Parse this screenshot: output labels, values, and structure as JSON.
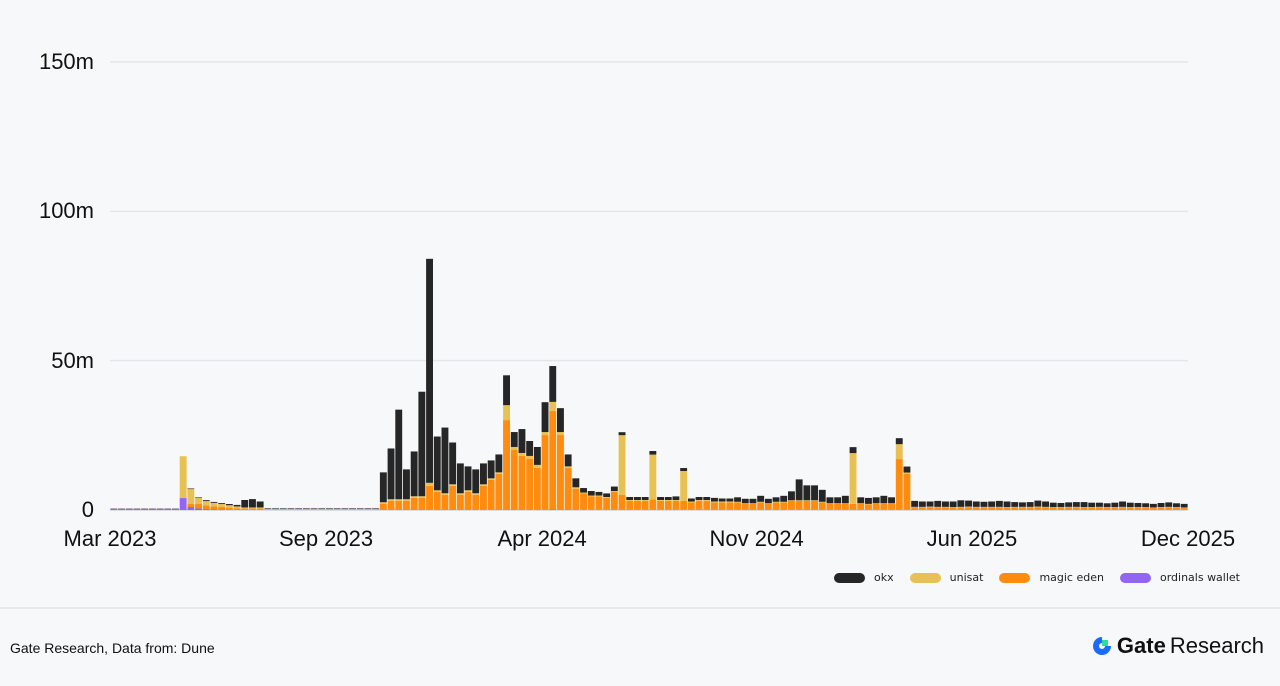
{
  "chart_data": {
    "type": "bar",
    "stacked": true,
    "title": "",
    "xlabel": "",
    "ylabel": "",
    "ylim": [
      0,
      150
    ],
    "yunit": "m",
    "yticks": [
      {
        "value": 0,
        "label": "0"
      },
      {
        "value": 50,
        "label": "50m"
      },
      {
        "value": 100,
        "label": "100m"
      },
      {
        "value": 150,
        "label": "150m"
      }
    ],
    "xticks": [
      {
        "week": 0,
        "label": "Mar 2023"
      },
      {
        "week": 28.8,
        "label": "Sep 2023"
      },
      {
        "week": 57.6,
        "label": "Apr 2024"
      },
      {
        "week": 86.2,
        "label": "Nov 2024"
      },
      {
        "week": 114.9,
        "label": "Jun 2025"
      },
      {
        "week": 143.7,
        "label": "Dec 2025"
      }
    ],
    "x_interval": "weekly (approx.), Mar 2023 – Dec 2025",
    "grid": true,
    "legend_position": "bottom-right",
    "series": [
      {
        "name": "ordinals wallet",
        "color": "#9166f5",
        "values": [
          0.4,
          0.4,
          0.4,
          0.4,
          0.4,
          0.4,
          0.4,
          0.4,
          0.4,
          4,
          1,
          0.5,
          0.3,
          0.2,
          0.2,
          0.1,
          0.1,
          0.05,
          0.05,
          0.05,
          0.05,
          0.05,
          0.05,
          0.05,
          0.05,
          0.05,
          0.05,
          0.05,
          0.05,
          0.05,
          0.05,
          0.05,
          0.05,
          0.05,
          0.05,
          0.1,
          0.1,
          0.1,
          0.1,
          0.1,
          0.1,
          0.1,
          0.1,
          0.1,
          0.1,
          0.1,
          0.1,
          0.1,
          0.1,
          0.1,
          0.1,
          0.1,
          0.1,
          0.1,
          0.1,
          0.1,
          0.1,
          0.2,
          0.1,
          0.1,
          0.1,
          0.05,
          0.05,
          0.05,
          0.05,
          0.05,
          0.05,
          0.05,
          0.05,
          0.05,
          0.05,
          0.05,
          0.05,
          0.05,
          0.05,
          0.05,
          0.05,
          0.05,
          0.05,
          0.05,
          0.05,
          0.05,
          0.05,
          0.05,
          0.05,
          0.05,
          0.05,
          0.05,
          0.05,
          0.05,
          0.05,
          0.05,
          0.05,
          0.05,
          0.05,
          0.05,
          0.05,
          0.05,
          0.05,
          0.05,
          0.05,
          0.05,
          0.05,
          0.05,
          0.05,
          0.05,
          0.05,
          0.05,
          0.05,
          0.05,
          0.05,
          0.05,
          0.05,
          0.05,
          0.05,
          0.05,
          0.05,
          0.05,
          0.05,
          0.05,
          0.05,
          0.05,
          0.05,
          0.05,
          0.05,
          0.05,
          0.05,
          0.05,
          0.05,
          0.05,
          0.05,
          0.05,
          0.05,
          0.05,
          0.05,
          0.05,
          0.05,
          0.05,
          0.05,
          0.05
        ]
      },
      {
        "name": "magic eden",
        "color": "#ff8c0f",
        "values": [
          0,
          0,
          0,
          0,
          0,
          0,
          0,
          0,
          0,
          0,
          1,
          1.5,
          1.2,
          1,
          0.8,
          0.7,
          0.5,
          0.5,
          0.5,
          0.5,
          0.2,
          0.2,
          0.2,
          0.2,
          0.2,
          0.2,
          0.2,
          0.2,
          0.2,
          0.2,
          0.2,
          0.2,
          0.2,
          0.2,
          0.2,
          2,
          3,
          3,
          3,
          4,
          4,
          8,
          6,
          5,
          8,
          5,
          6,
          5,
          8,
          10,
          12,
          30,
          20,
          18,
          17,
          14,
          25,
          33,
          25,
          14,
          7,
          5.5,
          4.5,
          4.5,
          4,
          6,
          5,
          3,
          3,
          3,
          3.5,
          3,
          3,
          3,
          3,
          2.5,
          3,
          3,
          2.5,
          2.5,
          2.5,
          2.5,
          2,
          2,
          2.5,
          2,
          2.5,
          2.5,
          3,
          3,
          3,
          3,
          2.5,
          2,
          2,
          2,
          2,
          2,
          1.8,
          2,
          2,
          2,
          17,
          12,
          0.8,
          0.8,
          0.9,
          0.8,
          0.8,
          0.7,
          0.8,
          0.9,
          0.8,
          0.8,
          0.8,
          0.8,
          0.7,
          0.8,
          0.8,
          0.8,
          0.9,
          0.8,
          0.7,
          0.7,
          0.8,
          0.8,
          0.7,
          0.7,
          0.8,
          0.7,
          0.7,
          0.8,
          0.7,
          0.7,
          0.7,
          0.6,
          0.7,
          0.8,
          0.7,
          0.6,
          0.6,
          0.6,
          0.6,
          0.7
        ]
      },
      {
        "name": "unisat",
        "color": "#e8c154",
        "values": [
          0,
          0,
          0,
          0,
          0,
          0,
          0,
          0,
          0,
          14,
          5,
          2,
          1.5,
          1.2,
          1,
          0.8,
          0.6,
          0.3,
          0.3,
          0.3,
          0.1,
          0.1,
          0.1,
          0.1,
          0.1,
          0.1,
          0.1,
          0.1,
          0.1,
          0.1,
          0.1,
          0.1,
          0.1,
          0.1,
          0.1,
          0.5,
          0.5,
          0.5,
          0.5,
          0.5,
          0.5,
          1,
          0.5,
          0.5,
          0.5,
          0.5,
          0.5,
          0.5,
          0.5,
          0.5,
          0.5,
          5,
          1,
          1,
          1,
          1,
          1,
          3,
          1,
          0.5,
          0.5,
          0.3,
          0.3,
          0.3,
          0.3,
          0.3,
          20,
          0.3,
          0.3,
          0.3,
          15,
          0.3,
          0.3,
          0.3,
          10,
          0.3,
          0.3,
          0.3,
          0.3,
          0.3,
          0.3,
          0.2,
          0.2,
          0.2,
          0.2,
          0.2,
          0.2,
          0.2,
          0.2,
          0.2,
          0.2,
          0.2,
          0.2,
          0.2,
          0.2,
          0.2,
          17,
          0.2,
          0.2,
          0.2,
          0.2,
          0.2,
          5,
          0.5,
          0.2,
          0.2,
          0.2,
          0.2,
          0.2,
          0.2,
          0.2,
          0.2,
          0.2,
          0.2,
          0.2,
          0.2,
          0.2,
          0.2,
          0.2,
          0.2,
          0.2,
          0.2,
          0.2,
          0.2,
          0.2,
          0.2,
          0.2,
          0.2,
          0.2,
          0.2,
          0.2,
          0.2,
          0.2,
          0.2,
          0.2,
          0.2,
          0.2,
          0.2,
          0.2,
          0.2,
          0.2,
          0.2,
          0.2,
          0.2
        ]
      },
      {
        "name": "okx",
        "color": "#262626",
        "values": [
          0.1,
          0.1,
          0.1,
          0.1,
          0.1,
          0.1,
          0.1,
          0.1,
          0.1,
          0,
          0.2,
          0.2,
          0.3,
          0.3,
          0.3,
          0.4,
          0.5,
          2.5,
          2.8,
          2,
          0.2,
          0.2,
          0.2,
          0.2,
          0.2,
          0.2,
          0.2,
          0.2,
          0.2,
          0.2,
          0.2,
          0.2,
          0.2,
          0.2,
          0.2,
          10,
          17,
          30,
          10,
          15,
          35,
          75,
          18,
          22,
          14,
          10,
          8,
          8,
          7,
          6,
          6,
          10,
          5,
          8,
          5,
          6,
          10,
          12,
          8,
          4,
          3,
          1.5,
          1.5,
          1.2,
          1.2,
          1.5,
          1,
          1,
          1,
          1,
          1.2,
          1,
          1,
          1.2,
          1,
          1,
          1,
          1,
          1.2,
          1,
          1,
          1.5,
          1.5,
          1.5,
          2,
          1.5,
          1.5,
          2,
          3,
          7,
          5,
          5,
          4,
          2,
          2,
          2.5,
          2,
          2,
          2,
          2,
          2.5,
          2,
          2,
          2,
          2,
          1.8,
          1.7,
          2,
          1.8,
          1.9,
          2.2,
          2,
          1.8,
          1.7,
          1.8,
          2,
          1.9,
          1.6,
          1.5,
          1.6,
          2,
          1.8,
          1.5,
          1.4,
          1.5,
          1.6,
          1.7,
          1.5,
          1.4,
          1.3,
          1.5,
          1.8,
          1.5,
          1.4,
          1.3,
          1.2,
          1.4,
          1.5,
          1.3,
          1.2,
          1.2,
          1.3,
          1.2,
          1.4
        ]
      }
    ]
  },
  "footer": {
    "source": "Gate Research, Data from: Dune",
    "brand_bold": "Gate",
    "brand_text": "Research"
  }
}
